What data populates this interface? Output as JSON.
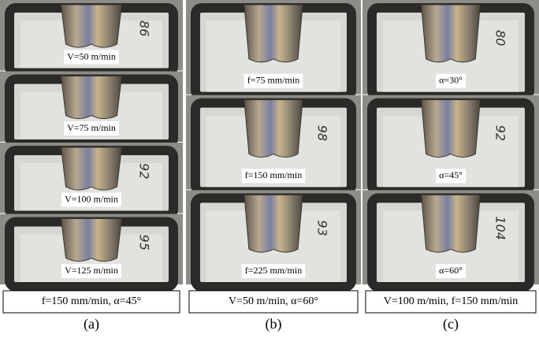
{
  "panels": [
    {
      "label": "(a)",
      "caption": "f=150 mm/min, α=45°",
      "photos": [
        {
          "label": "V=50 m/min",
          "note": "86"
        },
        {
          "label": "V=75 m/min"
        },
        {
          "label": "V=100 m/min",
          "note": "92"
        },
        {
          "label": "V=125 m/min",
          "note": "95"
        }
      ]
    },
    {
      "label": "(b)",
      "caption": "V=50 m/min, α=60°",
      "photos": [
        {
          "label": "f=75 mm/min"
        },
        {
          "label": "f=150 mm/min",
          "note": "98"
        },
        {
          "label": "f=225 mm/min",
          "note": "93"
        }
      ]
    },
    {
      "label": "(c)",
      "caption": "V=100 m/min, f=150 mm/min",
      "photos": [
        {
          "label": "α=30°",
          "note": "80"
        },
        {
          "label": "α=45°",
          "note": "92"
        },
        {
          "label": "α=60°",
          "note": "104"
        }
      ]
    }
  ]
}
